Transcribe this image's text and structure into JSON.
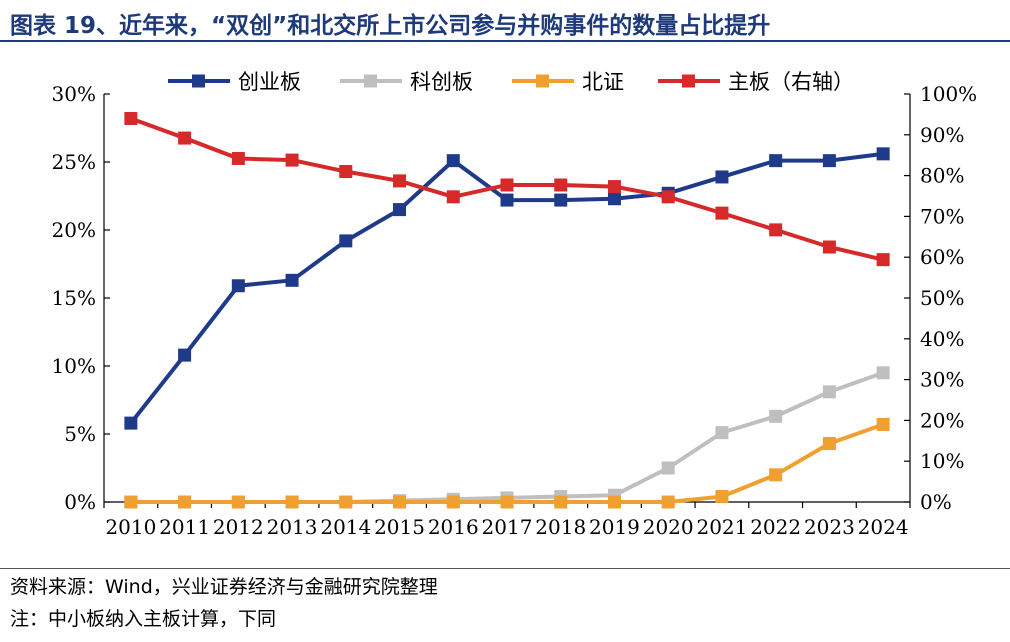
{
  "title": "图表 19、近年来，“双创”和北交所上市公司参与并购事件的数量占比提升",
  "footer": {
    "source": "资料来源：Wind，兴业证券经济与金融研究院整理",
    "note": "注：中小板纳入主板计算，下同"
  },
  "colors": {
    "title": "#1f3a7a",
    "chuangyeban": "#1f3a8a",
    "kechuangban": "#bfbfbf",
    "beizheng": "#f0a030",
    "zhuban": "#d62a2a"
  },
  "chart_data": {
    "type": "line",
    "categories": [
      "2010",
      "2011",
      "2012",
      "2013",
      "2014",
      "2015",
      "2016",
      "2017",
      "2018",
      "2019",
      "2020",
      "2021",
      "2022",
      "2023",
      "2024"
    ],
    "y_left": {
      "ylim": [
        0,
        30
      ],
      "ticks": [
        0,
        5,
        10,
        15,
        20,
        25,
        30
      ],
      "tick_labels": [
        "0%",
        "5%",
        "10%",
        "15%",
        "20%",
        "25%",
        "30%"
      ]
    },
    "y_right": {
      "ylim": [
        0,
        100
      ],
      "ticks": [
        0,
        10,
        20,
        30,
        40,
        50,
        60,
        70,
        80,
        90,
        100
      ],
      "tick_labels": [
        "0%",
        "10%",
        "20%",
        "30%",
        "40%",
        "50%",
        "60%",
        "70%",
        "80%",
        "90%",
        "100%"
      ]
    },
    "legend_position": "top",
    "grid": false,
    "series": [
      {
        "name": "创业板",
        "axis": "left",
        "color": "#1f3a8a",
        "marker": "square",
        "values": [
          5.8,
          10.8,
          15.9,
          16.3,
          19.2,
          21.5,
          25.1,
          22.2,
          22.2,
          22.3,
          22.7,
          23.9,
          25.1,
          25.1,
          25.6
        ]
      },
      {
        "name": "科创板",
        "axis": "left",
        "color": "#bfbfbf",
        "marker": "square",
        "values": [
          0,
          0,
          0,
          0,
          0,
          0.1,
          0.2,
          0.3,
          0.4,
          0.5,
          2.5,
          5.1,
          6.3,
          8.1,
          9.5
        ]
      },
      {
        "name": "北证",
        "axis": "left",
        "color": "#f0a030",
        "marker": "square",
        "values": [
          0,
          0,
          0,
          0,
          0,
          0,
          0,
          0,
          0,
          0,
          0,
          0.4,
          2.0,
          4.3,
          5.7
        ]
      },
      {
        "name": "主板（右轴）",
        "axis": "right",
        "color": "#d62a2a",
        "marker": "square",
        "values": [
          94,
          89.2,
          84.2,
          83.8,
          81,
          78.7,
          74.8,
          77.7,
          77.7,
          77.3,
          74.8,
          70.8,
          66.7,
          62.5,
          59.4
        ]
      }
    ]
  }
}
